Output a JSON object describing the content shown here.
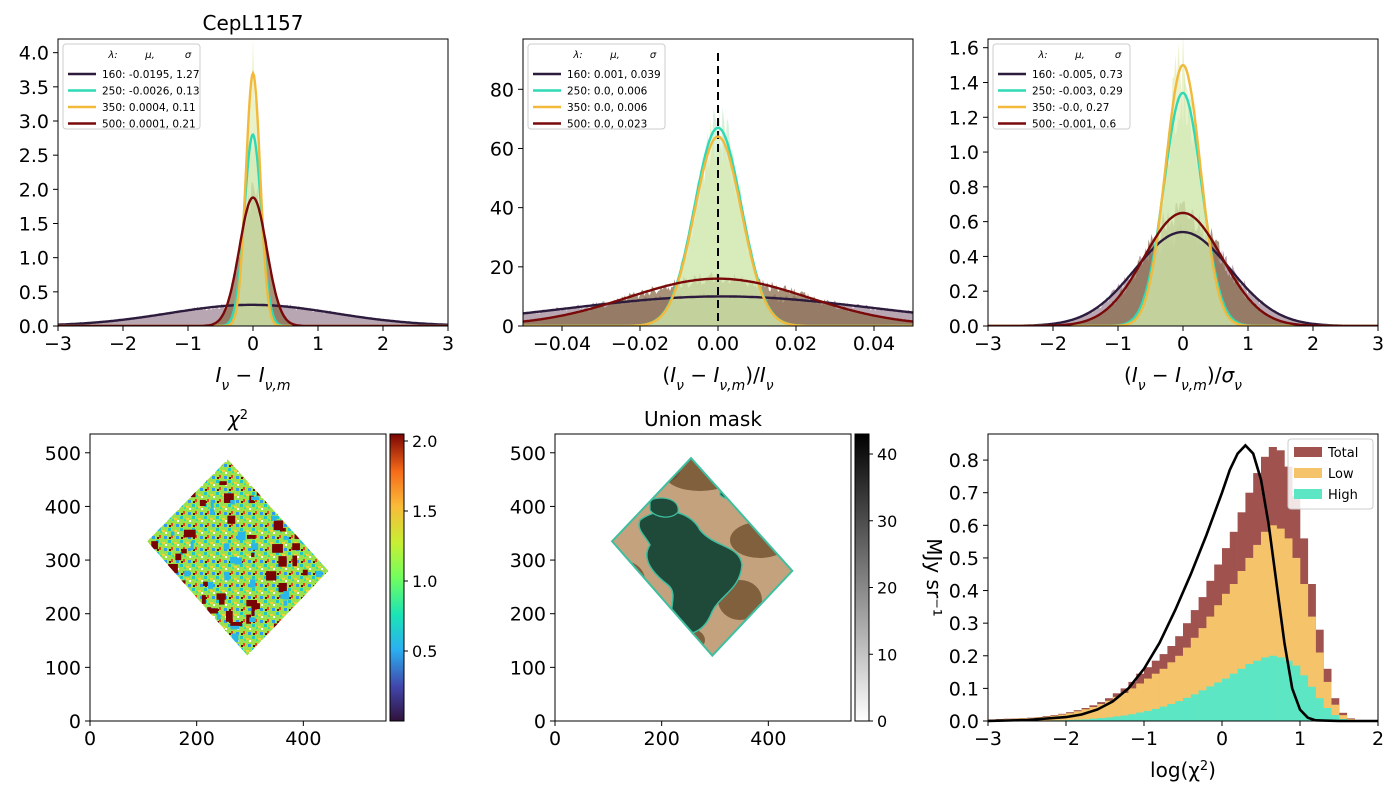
{
  "chart_data": [
    {
      "type": "line",
      "title": "CepL1157",
      "xlabel": "I_ν − I_ν,m",
      "xlim": [
        -3,
        3
      ],
      "ylim": [
        0,
        4.2
      ],
      "xticks": [
        "−3",
        "−2",
        "−1",
        "0",
        "1",
        "2",
        "3"
      ],
      "yticks": [
        "0.0",
        "0.5",
        "1.0",
        "1.5",
        "2.0",
        "2.5",
        "3.0",
        "3.5",
        "4.0"
      ],
      "legend_header": [
        "λ:",
        "μ,",
        "σ"
      ],
      "legend_position": "top-left",
      "series": [
        {
          "name": "160: -0.0195,  1.27",
          "mu": -0.0195,
          "sigma": 1.27,
          "peak": 0.31,
          "color": "#2d1b3d"
        },
        {
          "name": "250: -0.0026,  0.13",
          "mu": -0.0026,
          "sigma": 0.13,
          "peak": 2.8,
          "color": "#2ed9b6"
        },
        {
          "name": "350: 0.0004,  0.11",
          "mu": 0.0004,
          "sigma": 0.11,
          "peak": 3.7,
          "color": "#f2b93b"
        },
        {
          "name": "500: 0.0001,  0.21",
          "mu": 0.0001,
          "sigma": 0.21,
          "peak": 1.88,
          "color": "#7a0a0a"
        }
      ]
    },
    {
      "type": "line",
      "title": "",
      "xlabel": "(I_ν − I_ν,m)/I_ν",
      "xlim": [
        -0.05,
        0.05
      ],
      "ylim": [
        0,
        97
      ],
      "xticks": [
        "−0.04",
        "−0.02",
        "0.00",
        "0.02",
        "0.04"
      ],
      "yticks": [
        "0",
        "20",
        "40",
        "60",
        "80"
      ],
      "legend_header": [
        "λ:",
        "μ,",
        "σ"
      ],
      "legend_position": "top-left",
      "vline": 0,
      "series": [
        {
          "name": "160: 0.001,  0.039",
          "mu": 0.001,
          "sigma": 0.039,
          "peak": 10,
          "color": "#2d1b3d"
        },
        {
          "name": "250: 0.0,  0.006",
          "mu": 0.0,
          "sigma": 0.006,
          "peak": 67,
          "color": "#2ed9b6"
        },
        {
          "name": "350: 0.0,  0.006",
          "mu": 0.0,
          "sigma": 0.006,
          "peak": 64,
          "color": "#f2b93b"
        },
        {
          "name": "500: 0.0,  0.023",
          "mu": 0.0,
          "sigma": 0.023,
          "peak": 16,
          "color": "#7a0a0a"
        }
      ]
    },
    {
      "type": "line",
      "title": "",
      "xlabel": "(I_ν − I_ν,m)/σ_ν",
      "xlim": [
        -3,
        3
      ],
      "ylim": [
        0,
        1.65
      ],
      "xticks": [
        "−3",
        "−2",
        "−1",
        "0",
        "1",
        "2",
        "3"
      ],
      "yticks": [
        "0.0",
        "0.2",
        "0.4",
        "0.6",
        "0.8",
        "1.0",
        "1.2",
        "1.4",
        "1.6"
      ],
      "legend_header": [
        "λ:",
        "μ,",
        "σ"
      ],
      "legend_position": "top-left",
      "series": [
        {
          "name": "160: -0.005,  0.73",
          "mu": -0.005,
          "sigma": 0.73,
          "peak": 0.54,
          "color": "#2d1b3d"
        },
        {
          "name": "250: -0.003,  0.29",
          "mu": -0.003,
          "sigma": 0.29,
          "peak": 1.34,
          "color": "#2ed9b6"
        },
        {
          "name": "350: -0.0,  0.27",
          "mu": 0.0,
          "sigma": 0.27,
          "peak": 1.5,
          "color": "#f2b93b"
        },
        {
          "name": "500: -0.001,  0.6",
          "mu": -0.001,
          "sigma": 0.6,
          "peak": 0.65,
          "color": "#7a0a0a"
        }
      ]
    },
    {
      "type": "heatmap",
      "title": "χ²",
      "xlim": [
        0,
        555
      ],
      "ylim": [
        0,
        535
      ],
      "xticks": [
        "0",
        "200",
        "400"
      ],
      "yticks": [
        "0",
        "100",
        "200",
        "300",
        "400",
        "500"
      ],
      "region_corners": [
        [
          258,
          488
        ],
        [
          447,
          280
        ],
        [
          295,
          122
        ],
        [
          107,
          335
        ]
      ],
      "colorbar": {
        "min": 0.0,
        "max": 2.05,
        "ticks": [
          "0.5",
          "1.0",
          "1.5",
          "2.0"
        ],
        "colormap": "turbo"
      }
    },
    {
      "type": "heatmap",
      "title": "Union mask",
      "xlim": [
        0,
        555
      ],
      "ylim": [
        0,
        535
      ],
      "xticks": [
        "0",
        "200",
        "400"
      ],
      "yticks": [
        "0",
        "100",
        "200",
        "300",
        "400",
        "500"
      ],
      "region_corners": [
        [
          255,
          490
        ],
        [
          445,
          280
        ],
        [
          295,
          122
        ],
        [
          107,
          335
        ]
      ],
      "colorbar": {
        "min": 0,
        "max": 43,
        "ticks": [
          "0",
          "10",
          "20",
          "30",
          "40"
        ],
        "label": "MJy sr⁻¹",
        "colormap": "gray_r"
      }
    },
    {
      "type": "bar",
      "title": "",
      "xlabel": "log(χ²)",
      "xlim": [
        -3,
        2
      ],
      "ylim": [
        0,
        0.88
      ],
      "xticks": [
        "−3",
        "−2",
        "−1",
        "0",
        "1",
        "2"
      ],
      "yticks": [
        "0.0",
        "0.1",
        "0.2",
        "0.3",
        "0.4",
        "0.5",
        "0.6",
        "0.7",
        "0.8"
      ],
      "legend_position": "top-right",
      "legend": [
        "Total",
        "Low",
        "High"
      ],
      "bin_start": -3.0,
      "bin_width": 0.1,
      "series": [
        {
          "name": "Total",
          "color": "#a0524f",
          "values": [
            0.005,
            0.006,
            0.007,
            0.008,
            0.009,
            0.01,
            0.012,
            0.015,
            0.018,
            0.022,
            0.027,
            0.033,
            0.04,
            0.048,
            0.058,
            0.07,
            0.085,
            0.1,
            0.12,
            0.145,
            0.165,
            0.185,
            0.205,
            0.23,
            0.26,
            0.3,
            0.34,
            0.38,
            0.43,
            0.48,
            0.53,
            0.58,
            0.64,
            0.7,
            0.76,
            0.81,
            0.84,
            0.83,
            0.78,
            0.69,
            0.56,
            0.42,
            0.28,
            0.16,
            0.07,
            0.025,
            0.008,
            0.002,
            0.0,
            0.0,
            0.0
          ]
        },
        {
          "name": "Low",
          "color": "#f5c46a",
          "values": [
            0.004,
            0.005,
            0.006,
            0.007,
            0.008,
            0.009,
            0.011,
            0.013,
            0.016,
            0.02,
            0.024,
            0.03,
            0.036,
            0.043,
            0.052,
            0.062,
            0.074,
            0.086,
            0.1,
            0.115,
            0.13,
            0.145,
            0.16,
            0.18,
            0.2,
            0.225,
            0.255,
            0.285,
            0.32,
            0.355,
            0.39,
            0.42,
            0.46,
            0.5,
            0.54,
            0.58,
            0.6,
            0.59,
            0.56,
            0.5,
            0.42,
            0.32,
            0.21,
            0.12,
            0.05,
            0.018,
            0.006,
            0.001,
            0.0,
            0.0,
            0.0
          ]
        },
        {
          "name": "High",
          "color": "#5ce6c3",
          "values": [
            0.0,
            0.0,
            0.0,
            0.0,
            0.0,
            0.0,
            0.001,
            0.001,
            0.002,
            0.002,
            0.003,
            0.004,
            0.005,
            0.007,
            0.009,
            0.011,
            0.014,
            0.017,
            0.021,
            0.026,
            0.031,
            0.037,
            0.044,
            0.052,
            0.061,
            0.071,
            0.082,
            0.094,
            0.106,
            0.118,
            0.13,
            0.145,
            0.16,
            0.175,
            0.185,
            0.195,
            0.2,
            0.195,
            0.185,
            0.17,
            0.14,
            0.105,
            0.07,
            0.04,
            0.018,
            0.006,
            0.002,
            0.0,
            0.0,
            0.0,
            0.0
          ]
        }
      ],
      "curve": {
        "color": "#000000",
        "x": [
          -3.0,
          -2.5,
          -2.0,
          -1.8,
          -1.6,
          -1.4,
          -1.2,
          -1.0,
          -0.8,
          -0.6,
          -0.4,
          -0.2,
          0.0,
          0.1,
          0.2,
          0.3,
          0.4,
          0.5,
          0.6,
          0.7,
          0.8,
          0.9,
          1.0,
          1.1,
          1.2,
          1.5,
          2.0
        ],
        "y": [
          0.0,
          0.003,
          0.012,
          0.02,
          0.035,
          0.06,
          0.1,
          0.16,
          0.24,
          0.34,
          0.45,
          0.57,
          0.7,
          0.77,
          0.82,
          0.845,
          0.82,
          0.74,
          0.6,
          0.42,
          0.24,
          0.1,
          0.035,
          0.01,
          0.002,
          0.0,
          0.0
        ]
      }
    }
  ]
}
